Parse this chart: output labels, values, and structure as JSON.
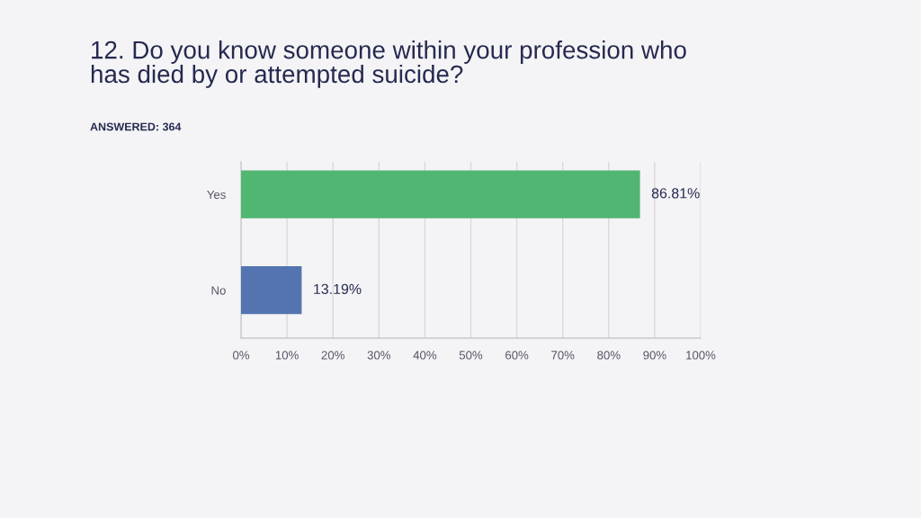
{
  "chart_data": {
    "type": "bar",
    "orientation": "horizontal",
    "title": "12. Do you know someone within your profession who has died by or attempted suicide?",
    "subtitle": "ANSWERED: 364",
    "categories": [
      "Yes",
      "No"
    ],
    "values": [
      86.81,
      13.19
    ],
    "colors": [
      "#52b673",
      "#5374b0"
    ],
    "value_labels": [
      "86.81%",
      "13.19%"
    ],
    "xlim": [
      0,
      100
    ],
    "xticks": [
      {
        "value": 0,
        "label": "0%"
      },
      {
        "value": 10,
        "label": "10%"
      },
      {
        "value": 20,
        "label": "20%"
      },
      {
        "value": 30,
        "label": "30%"
      },
      {
        "value": 40,
        "label": "40%"
      },
      {
        "value": 50,
        "label": "50%"
      },
      {
        "value": 60,
        "label": "60%"
      },
      {
        "value": 70,
        "label": "70%"
      },
      {
        "value": 80,
        "label": "80%"
      },
      {
        "value": 90,
        "label": "90%"
      },
      {
        "value": 100,
        "label": "100%"
      }
    ],
    "grid": "x",
    "legend": false
  }
}
